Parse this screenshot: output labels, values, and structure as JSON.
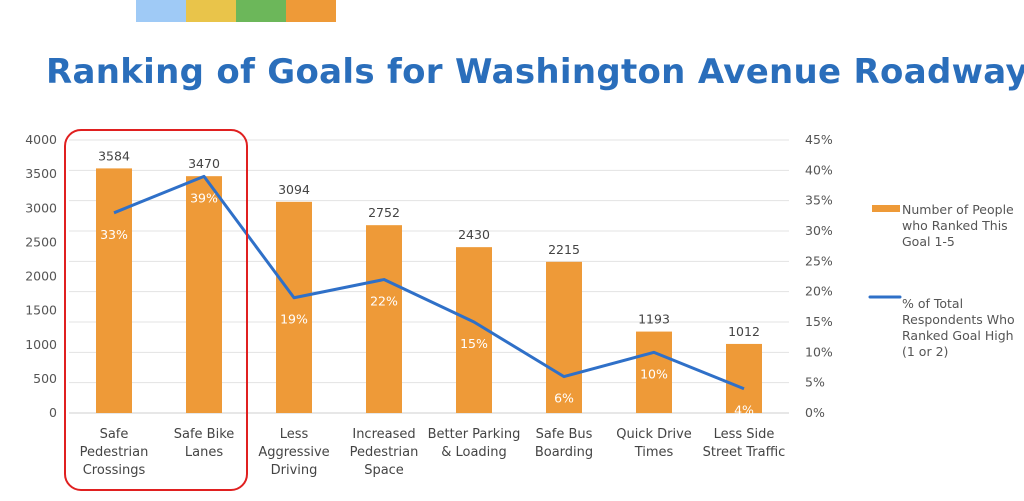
{
  "swatch_colors": [
    "#9fcaf6",
    "#e9c44a",
    "#6cb75a",
    "#ee9a38"
  ],
  "chart_data": {
    "type": "bar+line",
    "title": "Ranking of Goals for Washington Avenue Roadway",
    "categories": [
      [
        "Safe",
        "Pedestrian",
        "Crossings"
      ],
      [
        "Safe Bike",
        "Lanes"
      ],
      [
        "Less",
        "Aggressive",
        "Driving"
      ],
      [
        "Increased",
        "Pedestrian",
        "Space"
      ],
      [
        "Better Parking",
        "& Loading"
      ],
      [
        "Safe Bus",
        "Boarding"
      ],
      [
        "Quick Drive",
        "Times"
      ],
      [
        "Less Side",
        "Street Traffic"
      ]
    ],
    "series": [
      {
        "name": "Number of People who Ranked This Goal 1-5",
        "type": "bar",
        "axis": "left",
        "color": "#ee9a38",
        "values": [
          3584,
          3470,
          3094,
          2752,
          2430,
          2215,
          1193,
          1012
        ]
      },
      {
        "name": "% of Total Respondents Who Ranked Goal High (1 or 2)",
        "type": "line",
        "axis": "right",
        "color": "#2f70c8",
        "values": [
          33,
          39,
          19,
          22,
          15,
          6,
          10,
          4
        ],
        "labels": [
          "33%",
          "39%",
          "19%",
          "22%",
          "15%",
          "6%",
          "10%",
          "4%"
        ]
      }
    ],
    "legend_lines": [
      [
        "Number of People",
        "who Ranked This",
        "Goal 1-5"
      ],
      [
        "% of Total",
        "Respondents Who",
        "Ranked Goal High",
        "(1 or 2)"
      ]
    ],
    "ylim_left": [
      0,
      4000
    ],
    "yticks_left": [
      "0",
      "500",
      "1000",
      "1500",
      "2000",
      "2500",
      "3000",
      "3500",
      "4000"
    ],
    "ylim_right": [
      0,
      45
    ],
    "yticks_right": [
      "0%",
      "5%",
      "10%",
      "15%",
      "20%",
      "25%",
      "30%",
      "35%",
      "40%",
      "45%"
    ],
    "grid": true,
    "legend_position": "right",
    "highlight": {
      "categories": [
        0,
        1
      ],
      "color": "#e02020"
    }
  }
}
